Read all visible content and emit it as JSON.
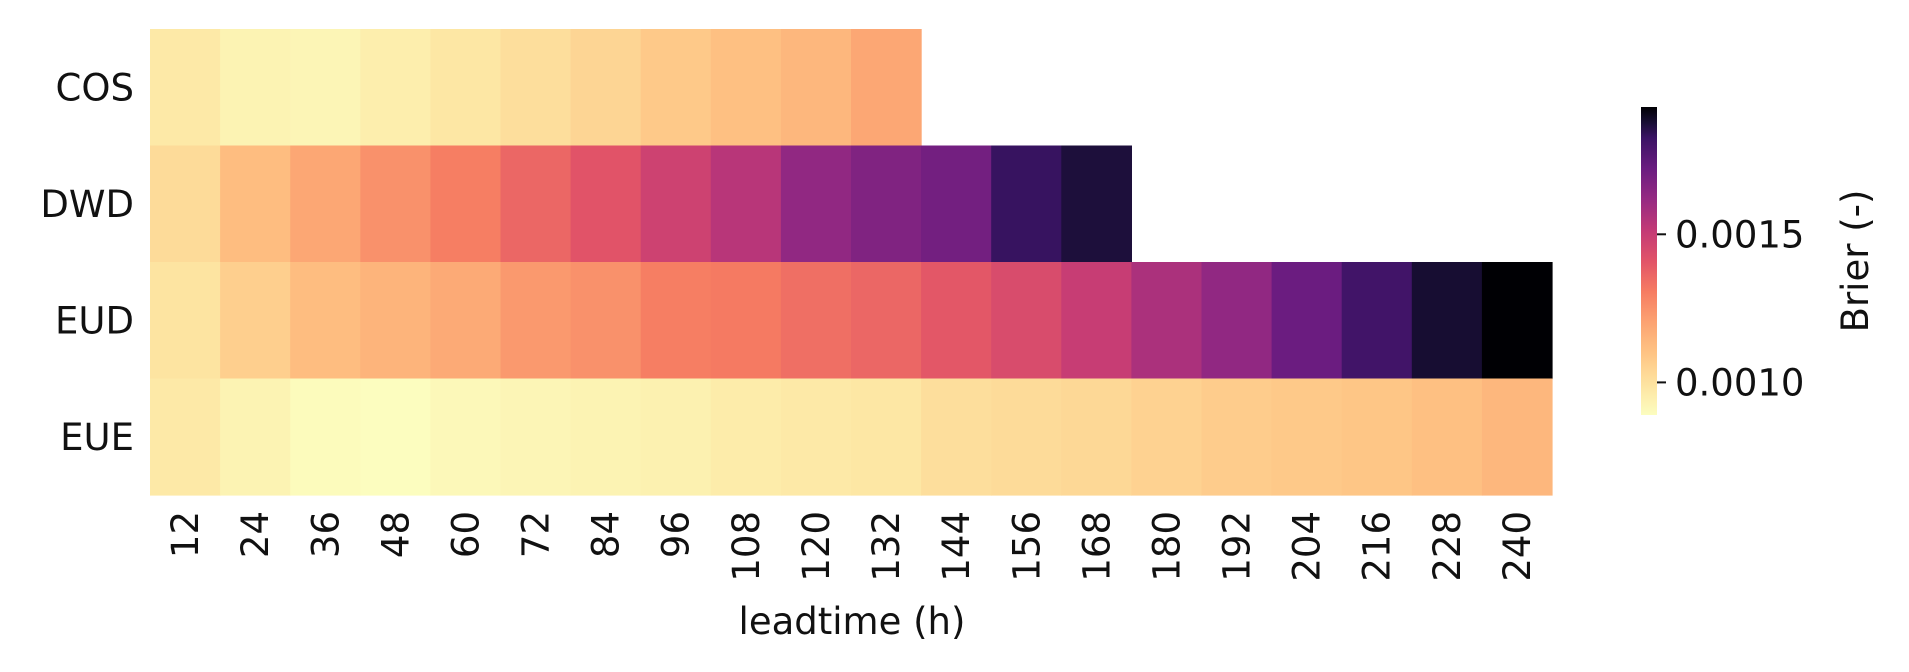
{
  "chart_data": {
    "type": "heatmap",
    "title": "",
    "xlabel": "leadtime (h)",
    "ylabel": "",
    "x": [
      "12",
      "24",
      "36",
      "48",
      "60",
      "72",
      "84",
      "96",
      "108",
      "120",
      "132",
      "144",
      "156",
      "168",
      "180",
      "192",
      "204",
      "216",
      "228",
      "240"
    ],
    "y": [
      "COS",
      "DWD",
      "EUD",
      "EUE"
    ],
    "values": [
      [
        0.00097,
        0.00093,
        0.00092,
        0.00095,
        0.00098,
        0.00101,
        0.00104,
        0.00108,
        0.00111,
        0.00114,
        0.00119,
        null,
        null,
        null,
        null,
        null,
        null,
        null,
        null,
        null
      ],
      [
        0.00102,
        0.00112,
        0.00119,
        0.00125,
        0.0013,
        0.00136,
        0.00141,
        0.00148,
        0.00154,
        0.00163,
        0.00167,
        0.0017,
        0.00183,
        0.00187,
        null,
        null,
        null,
        null,
        null,
        null
      ],
      [
        0.00099,
        0.00106,
        0.00112,
        0.00115,
        0.00118,
        0.00123,
        0.00125,
        0.0013,
        0.00131,
        0.00134,
        0.00136,
        0.0014,
        0.00144,
        0.0015,
        0.00157,
        0.00163,
        0.00172,
        0.00181,
        0.00188,
        0.00193
      ],
      [
        0.00097,
        0.00093,
        0.0009,
        0.00089,
        0.00091,
        0.00092,
        0.00093,
        0.00094,
        0.00096,
        0.00097,
        0.00098,
        0.00101,
        0.00102,
        0.00103,
        0.00105,
        0.00107,
        0.00108,
        0.00109,
        0.00111,
        0.00114
      ]
    ],
    "colorbar": {
      "label": "Brier (-)",
      "min": 0.00089,
      "max": 0.00193,
      "ticks": [
        0.001,
        0.0015
      ],
      "tick_labels": [
        "0.0010",
        "0.0015"
      ],
      "colormap": "magma_r"
    },
    "grid": false
  }
}
